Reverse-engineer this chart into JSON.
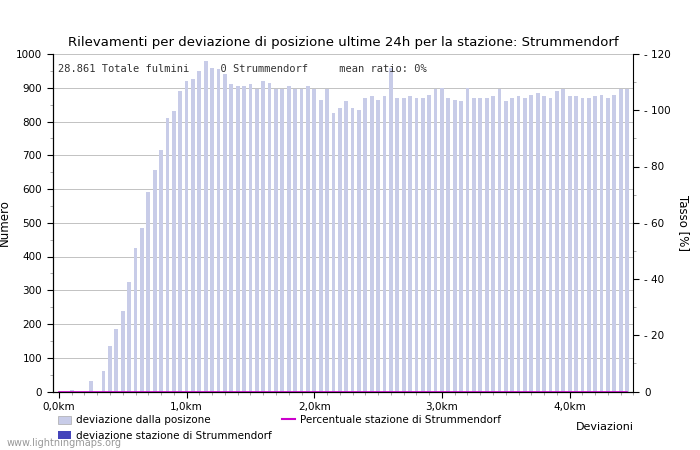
{
  "title": "Rilevamenti per deviazione di posizione ultime 24h per la stazione: Strummendorf",
  "ylabel_left": "Numero",
  "ylabel_right": "Tasso [%]",
  "xlabel": "Deviazioni",
  "info_text": "28.861 Totale fulmini     0 Strummendorf     mean ratio: 0%",
  "watermark": "www.lightningmaps.org",
  "bar_color_light": "#c8cce8",
  "bar_color_dark": "#4444bb",
  "line_color": "#cc00cc",
  "ylim_left": [
    0,
    1000
  ],
  "ylim_right": [
    0,
    120
  ],
  "xtick_labels": [
    "0,0km",
    "1,0km",
    "2,0km",
    "3,0km",
    "4,0km"
  ],
  "legend_label1": "deviazione dalla posizone",
  "legend_label2": "deviazione stazione di Strummendorf",
  "legend_label3": "Percentuale stazione di Strummendorf",
  "bar_values": [
    0,
    0,
    3,
    0,
    0,
    30,
    0,
    60,
    135,
    185,
    240,
    325,
    425,
    485,
    590,
    655,
    715,
    810,
    830,
    890,
    920,
    925,
    950,
    980,
    960,
    955,
    940,
    910,
    905,
    905,
    910,
    895,
    920,
    915,
    895,
    895,
    905,
    895,
    895,
    905,
    895,
    865,
    895,
    825,
    840,
    860,
    840,
    835,
    870,
    875,
    865,
    875,
    960,
    870,
    870,
    875,
    870,
    870,
    880,
    895,
    900,
    870,
    865,
    860,
    900,
    870,
    870,
    870,
    875,
    895,
    860,
    870,
    875,
    870,
    880,
    885,
    875,
    870,
    890,
    895,
    875,
    875,
    870,
    870,
    875,
    880,
    870,
    880,
    895,
    895
  ],
  "km_per_bar": 0.05,
  "background_color": "#ffffff",
  "grid_color": "#aaaaaa",
  "tick_color": "#555555"
}
